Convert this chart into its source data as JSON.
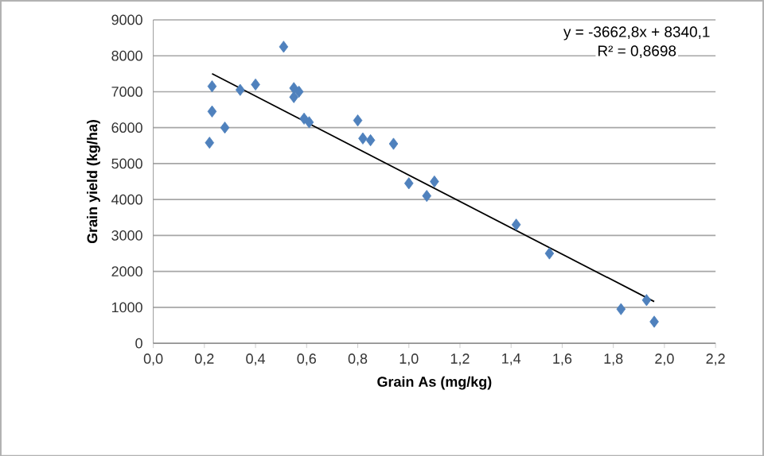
{
  "chart_data": {
    "type": "scatter",
    "xlabel": "Grain As (mg/kg)",
    "ylabel": "Grain yield (kg/ha)",
    "xlim": [
      0,
      2.2
    ],
    "ylim": [
      0,
      9000
    ],
    "xticks": [
      {
        "value": 0,
        "label": "0,0"
      },
      {
        "value": 0.2,
        "label": "0,2"
      },
      {
        "value": 0.4,
        "label": "0,4"
      },
      {
        "value": 0.6,
        "label": "0,6"
      },
      {
        "value": 0.8,
        "label": "0,8"
      },
      {
        "value": 1.0,
        "label": "1,0"
      },
      {
        "value": 1.2,
        "label": "1,2"
      },
      {
        "value": 1.4,
        "label": "1,4"
      },
      {
        "value": 1.6,
        "label": "1,6"
      },
      {
        "value": 1.8,
        "label": "1,8"
      },
      {
        "value": 2.0,
        "label": "2,0"
      },
      {
        "value": 2.2,
        "label": "2,2"
      }
    ],
    "yticks": [
      0,
      1000,
      2000,
      3000,
      4000,
      5000,
      6000,
      7000,
      8000,
      9000
    ],
    "grid": "y",
    "marker": "diamond",
    "annotations": [
      "y = -3662,8x + 8340,1",
      "R² = 0,8698"
    ],
    "series": [
      {
        "color": "#4f81bd",
        "x": [
          0.22,
          0.23,
          0.23,
          0.28,
          0.34,
          0.4,
          0.51,
          0.55,
          0.55,
          0.57,
          0.59,
          0.61,
          0.8,
          0.82,
          0.85,
          0.94,
          1.0,
          1.07,
          1.1,
          1.42,
          1.55,
          1.83,
          1.93,
          1.96
        ],
        "values": [
          5580,
          7150,
          6450,
          6000,
          7050,
          7200,
          8250,
          7100,
          6850,
          7000,
          6250,
          6150,
          6200,
          5700,
          5650,
          5550,
          4450,
          4100,
          4500,
          3300,
          2500,
          950,
          1200,
          600
        ]
      },
      {
        "type": "line",
        "color": "#000000",
        "marker": "none",
        "x": [
          0.23,
          1.96
        ],
        "values": [
          7500,
          1160
        ]
      }
    ]
  }
}
